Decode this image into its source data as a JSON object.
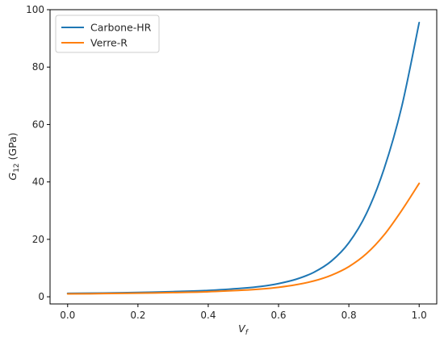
{
  "chart_data": {
    "type": "line",
    "xlabel": "V",
    "xlabel_sub": "f",
    "ylabel": "G",
    "ylabel_sub": "12",
    "ylabel_unit": "(GPa)",
    "xlim": [
      -0.05,
      1.05
    ],
    "ylim": [
      -2.5,
      100
    ],
    "x_ticks": [
      0.0,
      0.2,
      0.4,
      0.6,
      0.8,
      1.0
    ],
    "x_tick_labels": [
      "0.0",
      "0.2",
      "0.4",
      "0.6",
      "0.8",
      "1.0"
    ],
    "y_ticks": [
      0,
      20,
      40,
      60,
      80,
      100
    ],
    "y_tick_labels": [
      "0",
      "20",
      "40",
      "60",
      "80",
      "100"
    ],
    "grid": false,
    "legend_position": "top-left",
    "series": [
      {
        "name": "Carbone-HR",
        "color": "#1f77b4",
        "x": [
          0.0,
          0.1,
          0.2,
          0.3,
          0.4,
          0.5,
          0.55,
          0.6,
          0.65,
          0.7,
          0.75,
          0.8,
          0.85,
          0.9,
          0.95,
          1.0
        ],
        "y": [
          1.2,
          1.3,
          1.5,
          1.8,
          2.2,
          3.0,
          3.6,
          4.6,
          6.1,
          8.5,
          12.4,
          18.8,
          29.0,
          44.5,
          66.0,
          95.5
        ]
      },
      {
        "name": "Verre-R",
        "color": "#ff7f0e",
        "x": [
          0.0,
          0.1,
          0.2,
          0.3,
          0.4,
          0.5,
          0.55,
          0.6,
          0.65,
          0.7,
          0.75,
          0.8,
          0.85,
          0.9,
          0.95,
          1.0
        ],
        "y": [
          1.0,
          1.1,
          1.25,
          1.45,
          1.75,
          2.3,
          2.7,
          3.3,
          4.2,
          5.5,
          7.5,
          10.5,
          15.0,
          21.5,
          30.0,
          39.5
        ]
      }
    ]
  }
}
